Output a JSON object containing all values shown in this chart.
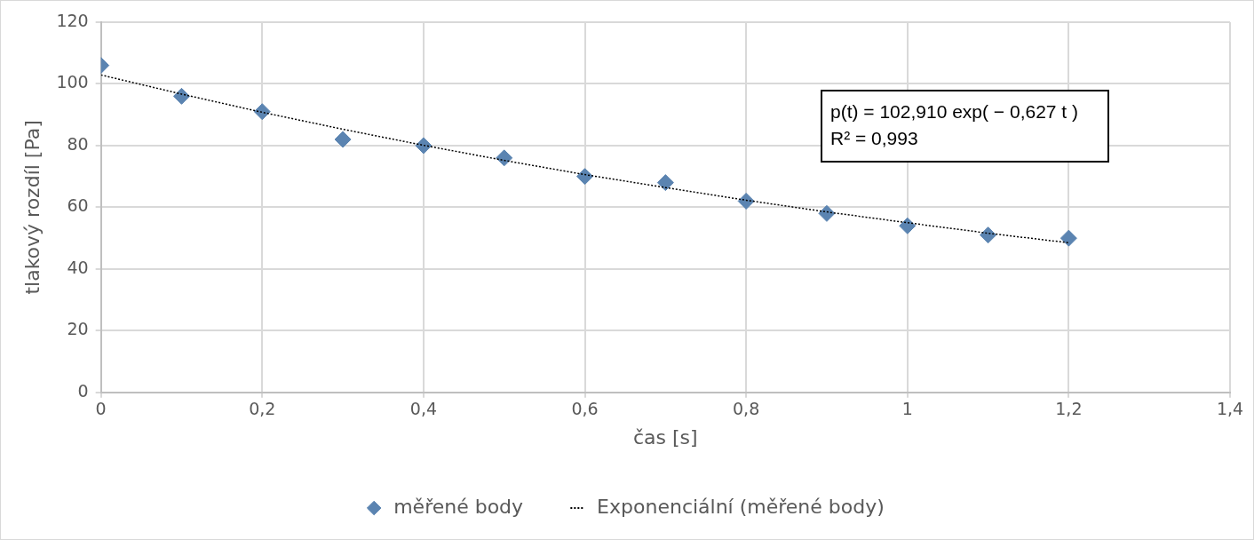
{
  "chart_data": {
    "type": "scatter",
    "xlabel": "čas [s]",
    "ylabel": "tlakový rozdíl [Pa]",
    "x": [
      0,
      0.1,
      0.2,
      0.3,
      0.4,
      0.5,
      0.6,
      0.7,
      0.8,
      0.9,
      1,
      1.1,
      1.2
    ],
    "series": [
      {
        "name": "měřené body",
        "color": "#5b84b1",
        "marker": "diamond",
        "values": [
          106,
          96,
          91,
          82,
          80,
          76,
          70,
          68,
          62,
          58,
          54,
          51,
          50
        ]
      },
      {
        "name": "Exponenciální (měřené body)",
        "color": "#000000",
        "type": "line",
        "line_style": "dotted",
        "marker": "none",
        "x": [
          0,
          0.1,
          0.2,
          0.3,
          0.4,
          0.5,
          0.6,
          0.7,
          0.8,
          0.9,
          1,
          1.1,
          1.2
        ],
        "values": [
          102.9,
          96.7,
          90.8,
          85.3,
          80.1,
          75.2,
          70.6,
          66.4,
          62.3,
          58.5,
          55.0,
          51.6,
          48.5
        ]
      }
    ],
    "xlim": [
      0,
      1.4
    ],
    "xticks": [
      0,
      {
        "value": 0.2,
        "label": "0,2"
      },
      {
        "value": 0.4,
        "label": "0,4"
      },
      {
        "value": 0.6,
        "label": "0,6"
      },
      {
        "value": 0.8,
        "label": "0,8"
      },
      1,
      {
        "value": 1.2,
        "label": "1,2"
      },
      {
        "value": 1.4,
        "label": "1,4"
      }
    ],
    "ylim": [
      0,
      120
    ],
    "yticks": [
      0,
      20,
      40,
      60,
      80,
      100,
      120
    ],
    "annotations": [
      "p(t) = 102,910 exp( − 0,627 t )",
      "R² = 0,993"
    ],
    "grid": true,
    "legend": "bottom"
  }
}
